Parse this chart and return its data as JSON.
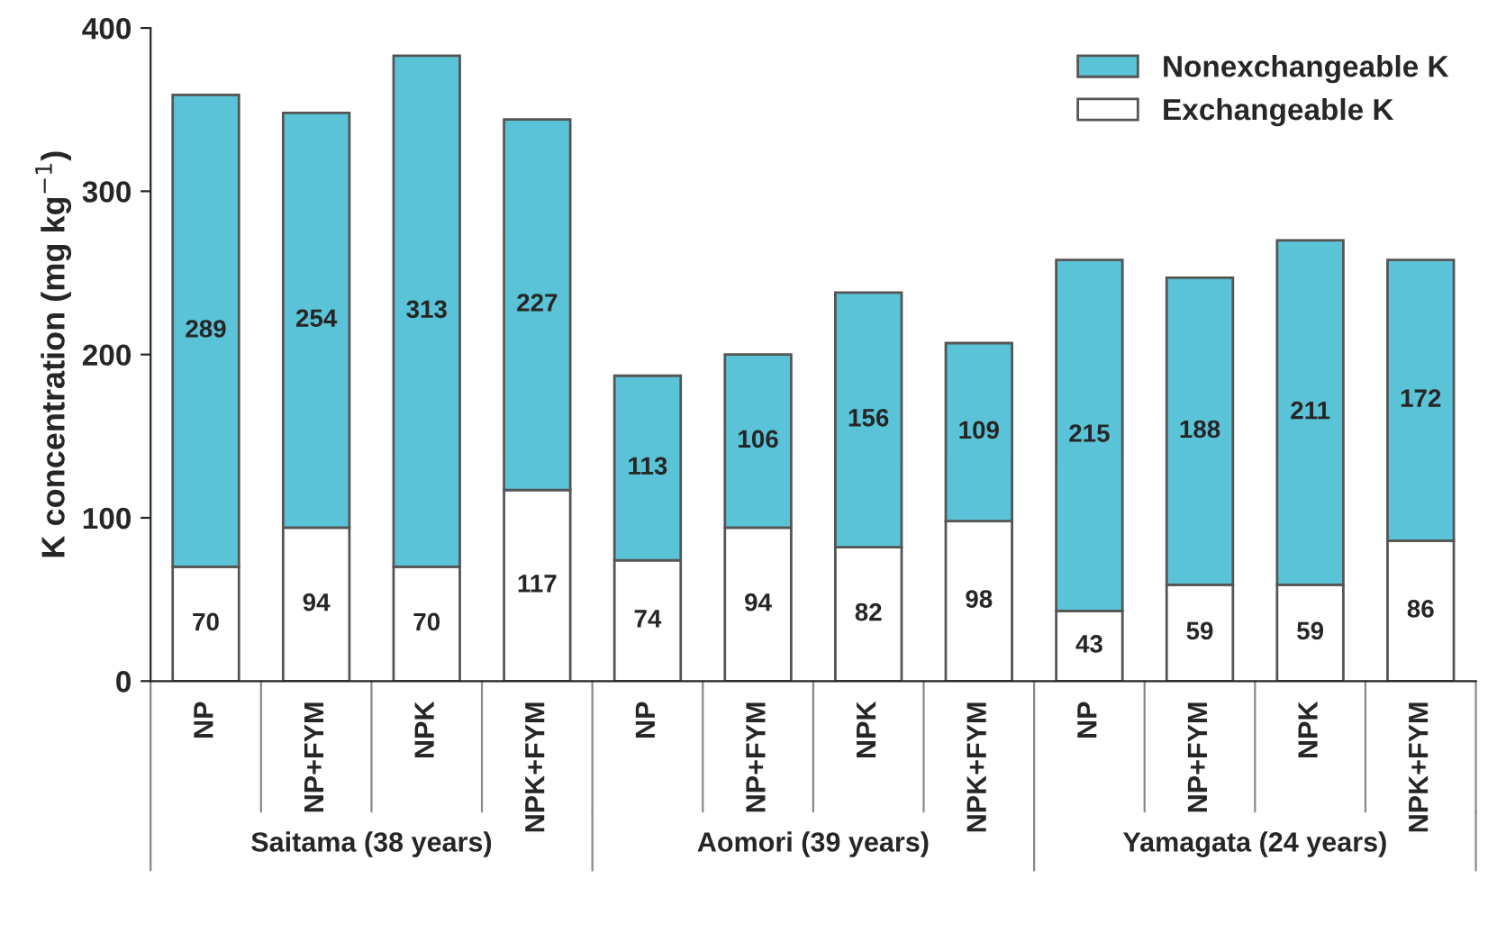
{
  "chart_data": {
    "type": "bar",
    "stacked": true,
    "ylabel": "K concentration (mg kg$^{−1}$)",
    "categories": [
      "NP",
      "NP+FYM",
      "NPK",
      "NPK+FYM",
      "NP",
      "NP+FYM",
      "NPK",
      "NPK+FYM",
      "NP",
      "NP+FYM",
      "NPK",
      "NPK+FYM"
    ],
    "series": [
      {
        "name": "Exchangeable K",
        "color": "#ffffff",
        "values": [
          70,
          94,
          70,
          117,
          74,
          94,
          82,
          98,
          43,
          59,
          59,
          86
        ]
      },
      {
        "name": "Nonexchangeable K",
        "color": "#5bc3d7",
        "values": [
          289,
          254,
          313,
          227,
          113,
          106,
          156,
          109,
          215,
          188,
          211,
          172
        ]
      }
    ],
    "annotations": [
      "Saitama (38 years)",
      "Aomori (39 years)",
      "Yamagata (24 years)"
    ],
    "ylim": [
      0,
      400
    ],
    "yticks": [
      0,
      100,
      200,
      300,
      400
    ],
    "data_labels": true,
    "legend": "top right",
    "grid": false
  }
}
